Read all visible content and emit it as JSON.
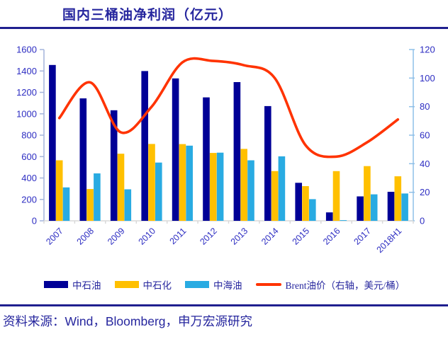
{
  "header": {
    "title": "国内三桶油净利润（亿元）"
  },
  "footer": {
    "source_text": "资料来源：Wind，Bloomberg，申万宏源研究"
  },
  "colors": {
    "title_text": "#26269E",
    "rule": "#1F1F8F",
    "axis_label": "#2D2DC2",
    "left_axis_line": "#A3B4DC",
    "right_axis_line": "#8FC0E8",
    "baseline": "#D9D9D9",
    "background": "#FFFFFF"
  },
  "chart_data": {
    "type": "bar",
    "title": "国内三桶油净利润（亿元）",
    "categories": [
      "2007",
      "2008",
      "2009",
      "2010",
      "2011",
      "2012",
      "2013",
      "2014",
      "2015",
      "2016",
      "2017",
      "2018H1"
    ],
    "series": [
      {
        "name": "中石油",
        "type": "bar",
        "axis": "left",
        "color": "#000096",
        "values": [
          1456,
          1144,
          1033,
          1399,
          1330,
          1153,
          1296,
          1072,
          355,
          79,
          228,
          271
        ]
      },
      {
        "name": "中石化",
        "type": "bar",
        "axis": "left",
        "color": "#FFC000",
        "values": [
          565,
          297,
          627,
          718,
          717,
          634,
          672,
          465,
          324,
          464,
          511,
          416
        ]
      },
      {
        "name": "中海油",
        "type": "bar",
        "axis": "left",
        "color": "#29ABE2",
        "values": [
          312,
          443,
          294,
          544,
          702,
          637,
          565,
          602,
          202,
          6,
          247,
          255
        ]
      },
      {
        "name": "Brent油价（右轴，美元/桶）",
        "type": "line",
        "axis": "right",
        "color": "#FF3300",
        "values": [
          72,
          97,
          62,
          80,
          111,
          112,
          109,
          100,
          53,
          45,
          55,
          71
        ]
      }
    ],
    "left_axis": {
      "min": 0,
      "max": 1600,
      "step": 200
    },
    "right_axis": {
      "min": 0,
      "max": 120,
      "step": 20
    },
    "legend_position": "bottom",
    "grid": false
  }
}
